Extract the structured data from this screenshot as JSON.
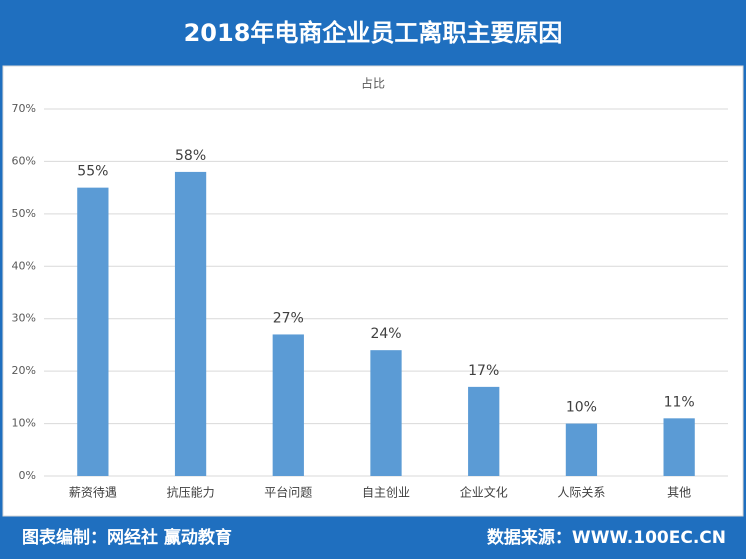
{
  "chart_data": {
    "type": "bar",
    "title": "2018年电商企业员工离职主要原因",
    "series_name": "占比",
    "categories": [
      "薪资待遇",
      "抗压能力",
      "平台问题",
      "自主创业",
      "企业文化",
      "人际关系",
      "其他"
    ],
    "values": [
      55,
      58,
      27,
      24,
      17,
      10,
      11
    ],
    "value_labels": [
      "55%",
      "58%",
      "27%",
      "24%",
      "17%",
      "10%",
      "11%"
    ],
    "color": "#5b9bd5",
    "ylim": [
      0,
      70
    ],
    "yticks": [
      {
        "value": 0,
        "label": "0%"
      },
      {
        "value": 10,
        "label": "10%"
      },
      {
        "value": 20,
        "label": "20%"
      },
      {
        "value": 30,
        "label": "30%"
      },
      {
        "value": 40,
        "label": "40%"
      },
      {
        "value": 50,
        "label": "50%"
      },
      {
        "value": 60,
        "label": "60%"
      },
      {
        "value": 70,
        "label": "70%"
      }
    ],
    "grid": true
  },
  "footer": {
    "credit": "图表编制：网经社 赢动教育",
    "source": "数据来源：WWW.100EC.CN"
  }
}
